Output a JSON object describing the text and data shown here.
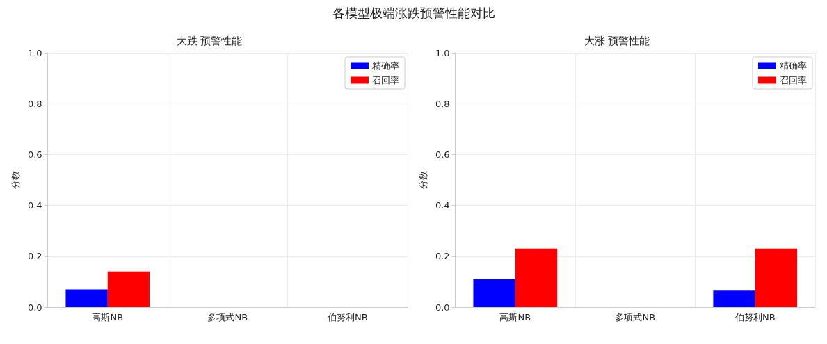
{
  "chart_data": [
    {
      "type": "bar",
      "title": "大跌 预警性能",
      "annotations": [
        "各模型极端涨跌预警性能对比"
      ],
      "ylabel": "分数",
      "categories": [
        "高斯NB",
        "多项式NB",
        "伯努利NB"
      ],
      "series": [
        {
          "name": "精确率",
          "color": "#0000ff",
          "values": [
            0.07,
            0,
            0
          ]
        },
        {
          "name": "召回率",
          "color": "#ff0000",
          "values": [
            0.14,
            0,
            0
          ]
        }
      ],
      "ylim": [
        0,
        1
      ],
      "yticks": [
        {
          "value": 0,
          "label": "0.0"
        },
        {
          "value": 0.2,
          "label": "0.2"
        },
        {
          "value": 0.4,
          "label": "0.4"
        },
        {
          "value": 0.6,
          "label": "0.6"
        },
        {
          "value": 0.8,
          "label": "0.8"
        },
        {
          "value": 1,
          "label": "1.0"
        }
      ],
      "grid": true,
      "legend": "top right"
    },
    {
      "type": "bar",
      "title": "大涨 预警性能",
      "ylabel": "分数",
      "categories": [
        "高斯NB",
        "多项式NB",
        "伯努利NB"
      ],
      "series": [
        {
          "name": "精确率",
          "color": "#0000ff",
          "values": [
            0.11,
            0,
            0.065
          ]
        },
        {
          "name": "召回率",
          "color": "#ff0000",
          "values": [
            0.23,
            0,
            0.23
          ]
        }
      ],
      "ylim": [
        0,
        1
      ],
      "yticks": [
        {
          "value": 0,
          "label": "0.0"
        },
        {
          "value": 0.2,
          "label": "0.2"
        },
        {
          "value": 0.4,
          "label": "0.4"
        },
        {
          "value": 0.6,
          "label": "0.6"
        },
        {
          "value": 0.8,
          "label": "0.8"
        },
        {
          "value": 1,
          "label": "1.0"
        }
      ],
      "grid": true,
      "legend": "top right"
    }
  ]
}
